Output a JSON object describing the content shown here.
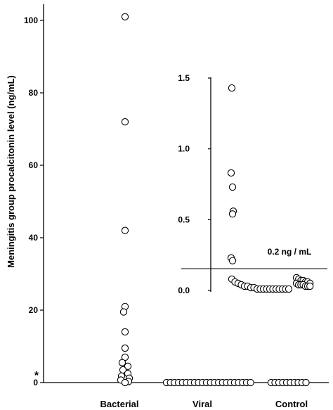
{
  "chart_data": [
    {
      "type": "scatter",
      "ylabel": "Meningitis group procalcitonin level (ng/mL)",
      "ylim": [
        0,
        105
      ],
      "yticks": [
        0,
        20,
        40,
        60,
        80,
        100
      ],
      "categories": [
        "Bacterial",
        "Viral",
        "Control"
      ],
      "marker": "open-circle",
      "annotation": "*",
      "series": [
        {
          "category": "Bacterial",
          "values": [
            101,
            72,
            42,
            21,
            19.5,
            14,
            9.5,
            7,
            5.5,
            4.5,
            3.5,
            2.5,
            1.8,
            1.2,
            0.7,
            0.3,
            0
          ]
        },
        {
          "category": "Viral",
          "count_at_zero": 22
        },
        {
          "category": "Control",
          "count_at_zero": 10
        }
      ]
    },
    {
      "type": "scatter",
      "inset": true,
      "ylim": [
        0,
        1.5
      ],
      "yticks": [
        "0.0",
        "0.5",
        "1.0",
        "1.5"
      ],
      "categories": [
        "Viral",
        "Control"
      ],
      "marker": "open-circle",
      "threshold": {
        "value": 0.2,
        "label": "0.2 ng / mL"
      },
      "series": [
        {
          "category": "Viral",
          "values": [
            1.43,
            0.83,
            0.73,
            0.56,
            0.54,
            0.23,
            0.21,
            0.08,
            0.06,
            0.05,
            0.04,
            0.03,
            0.03,
            0.02,
            0.02,
            0.01,
            0.01,
            0.01,
            0.01,
            0.01,
            0.01,
            0.01,
            0.01,
            0.01,
            0.01,
            0.01
          ]
        },
        {
          "category": "Control",
          "values": [
            0.09,
            0.08,
            0.07,
            0.07,
            0.06,
            0.06,
            0.05,
            0.05,
            0.04,
            0.04,
            0.04,
            0.03,
            0.03,
            0.03
          ]
        }
      ]
    }
  ]
}
